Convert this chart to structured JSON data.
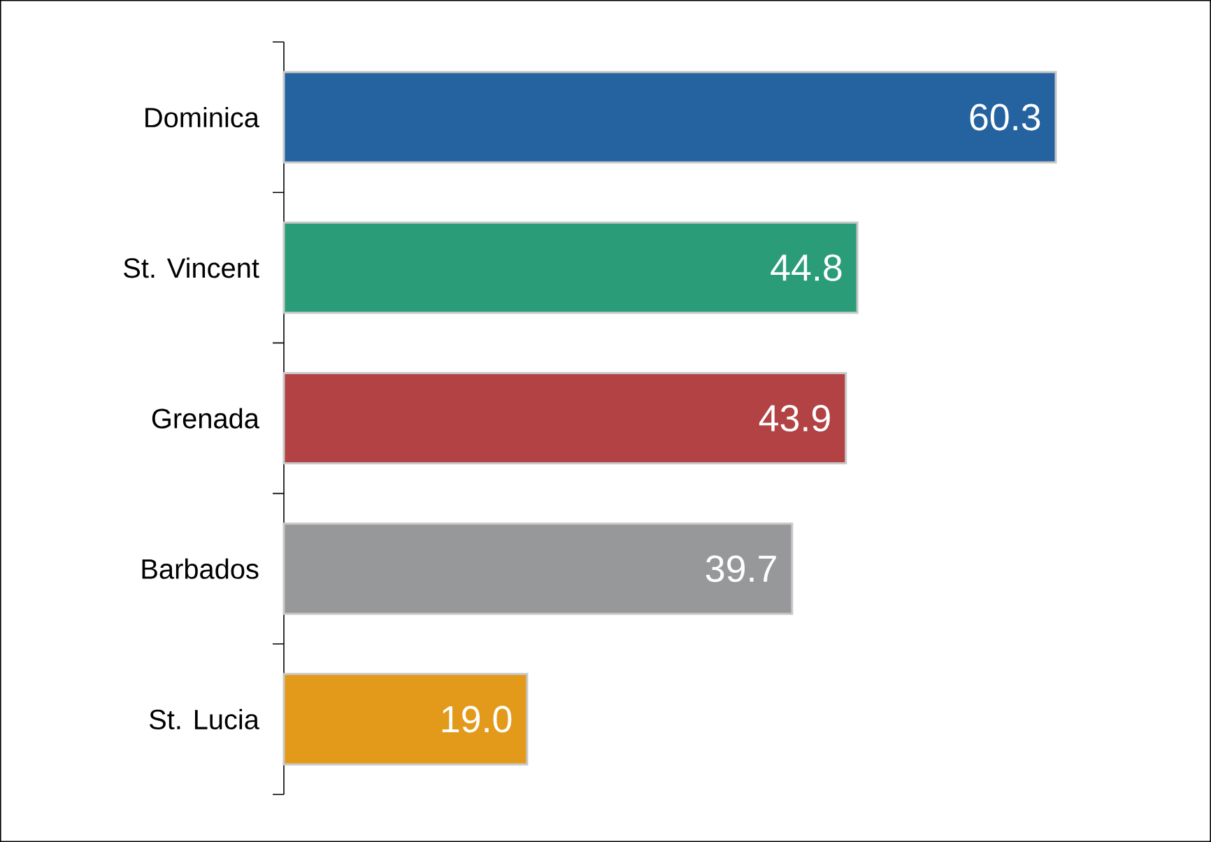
{
  "chart_data": {
    "type": "bar",
    "orientation": "horizontal",
    "categories": [
      "Dominica",
      "St. Vincent",
      "Grenada",
      "Barbados",
      "St. Lucia"
    ],
    "values": [
      60.3,
      44.8,
      43.9,
      39.7,
      19.0
    ],
    "value_labels": [
      "60.3",
      "44.8",
      "43.9",
      "39.7",
      "19.0"
    ],
    "colors": [
      "#2563a0",
      "#2a9d78",
      "#b34244",
      "#97989a",
      "#e39a1a"
    ]
  }
}
